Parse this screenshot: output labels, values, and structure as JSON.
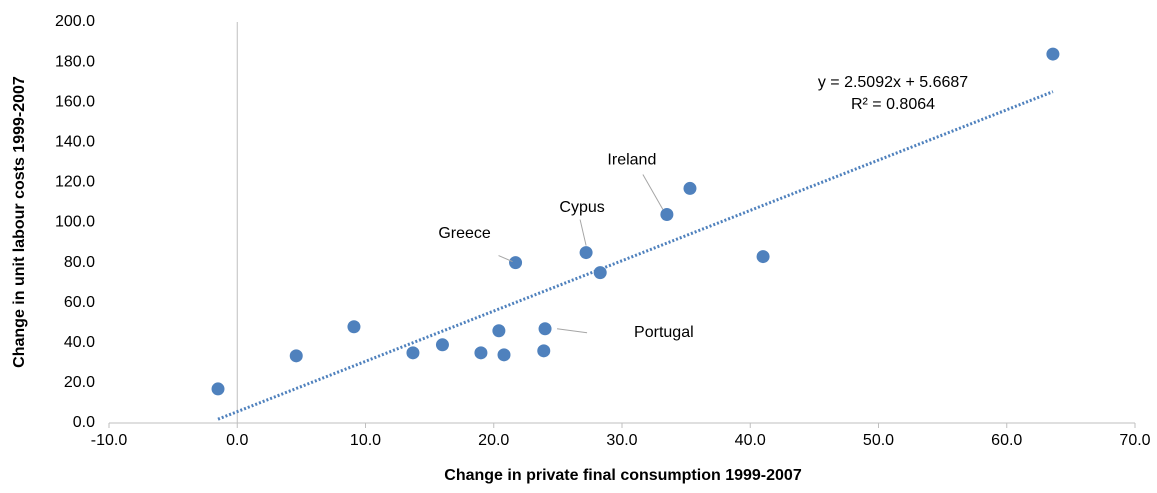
{
  "chart_data": {
    "type": "scatter",
    "xlabel": "Change in private final consumption 1999-2007",
    "ylabel": "Change in unit labour costs 1999-2007",
    "x": [
      -1.5,
      4.6,
      9.1,
      13.7,
      16.0,
      19.0,
      20.4,
      20.8,
      23.9,
      24.0,
      21.7,
      27.2,
      28.3,
      33.5,
      35.3,
      41.0,
      63.6
    ],
    "values": [
      17,
      33.5,
      48,
      35,
      39,
      35,
      46,
      34,
      36,
      47,
      80,
      85,
      75,
      104,
      117,
      83,
      184
    ],
    "point_labels": [
      null,
      null,
      null,
      null,
      null,
      null,
      null,
      null,
      null,
      "Portugal",
      "Greece",
      "Cypus",
      null,
      "Ireland",
      null,
      null,
      null
    ],
    "color": "#4f81bd",
    "trendline": {
      "slope": 2.5092,
      "intercept": 5.6687,
      "equation": "y = 2.5092x + 5.6687",
      "r_squared": "R² = 0.8064",
      "color": "#4f81bd"
    },
    "xlim": [
      -10,
      70
    ],
    "xticks": [
      {
        "value": -10,
        "label": "-10.0"
      },
      {
        "value": 0,
        "label": "0.0"
      },
      {
        "value": 10,
        "label": "10.0"
      },
      {
        "value": 20,
        "label": "20.0"
      },
      {
        "value": 30,
        "label": "30.0"
      },
      {
        "value": 40,
        "label": "40.0"
      },
      {
        "value": 50,
        "label": "50.0"
      },
      {
        "value": 60,
        "label": "60.0"
      },
      {
        "value": 70,
        "label": "70.0"
      }
    ],
    "ylim": [
      0,
      200
    ],
    "yticks": [
      {
        "value": 0,
        "label": "0.0"
      },
      {
        "value": 20,
        "label": "20.0"
      },
      {
        "value": 40,
        "label": "40.0"
      },
      {
        "value": 60,
        "label": "60.0"
      },
      {
        "value": 80,
        "label": "80.0"
      },
      {
        "value": 100,
        "label": "100.0"
      },
      {
        "value": 120,
        "label": "120.0"
      },
      {
        "value": 140,
        "label": "140.0"
      },
      {
        "value": 160,
        "label": "160.0"
      },
      {
        "value": 180,
        "label": "180.0"
      },
      {
        "value": 200,
        "label": "200.0"
      }
    ]
  }
}
